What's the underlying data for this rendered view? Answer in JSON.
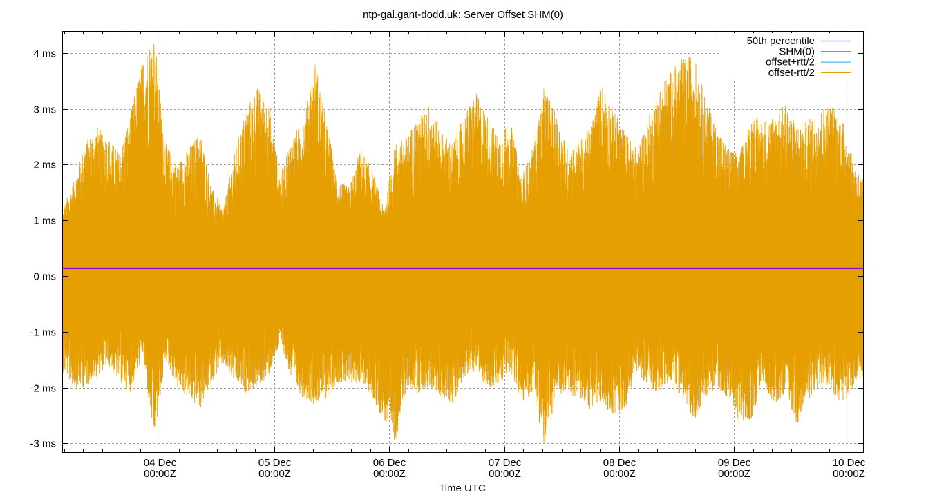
{
  "chart_data": {
    "type": "line",
    "title": "ntp-gal.gant-dodd.uk: Server Offset SHM(0)",
    "xlabel": "Time UTC",
    "ylabel": "",
    "ylim": [
      -3.15,
      4.4
    ],
    "y_unit": "ms",
    "grid": true,
    "legend_position": "top-right-inside",
    "y_ticks": [
      {
        "value": 4,
        "label": "4 ms"
      },
      {
        "value": 3,
        "label": "3 ms"
      },
      {
        "value": 2,
        "label": "2 ms"
      },
      {
        "value": 1,
        "label": "1 ms"
      },
      {
        "value": 0,
        "label": "0 ms"
      },
      {
        "value": -1,
        "label": "-1 ms"
      },
      {
        "value": -2,
        "label": "-2 ms"
      },
      {
        "value": -3,
        "label": "-3 ms"
      }
    ],
    "x_ticks": [
      {
        "day": 4,
        "line1": "04 Dec",
        "line2": "00:00Z"
      },
      {
        "day": 5,
        "line1": "05 Dec",
        "line2": "00:00Z"
      },
      {
        "day": 6,
        "line1": "06 Dec",
        "line2": "00:00Z"
      },
      {
        "day": 7,
        "line1": "07 Dec",
        "line2": "00:00Z"
      },
      {
        "day": 8,
        "line1": "08 Dec",
        "line2": "00:00Z"
      },
      {
        "day": 9,
        "line1": "09 Dec",
        "line2": "00:00Z"
      },
      {
        "day": 10,
        "line1": "10 Dec",
        "line2": "00:00Z"
      }
    ],
    "x_range_days": [
      3.15,
      10.13
    ],
    "minor_tick_hours": 4,
    "legend": [
      {
        "name": "50th percentile",
        "color": "#9400d3"
      },
      {
        "name": "SHM(0)",
        "color": "#009e73"
      },
      {
        "name": "offset+rtt/2",
        "color": "#56b4e9"
      },
      {
        "name": "offset-rtt/2",
        "color": "#e69f00"
      }
    ],
    "series": [
      {
        "name": "50th percentile",
        "type": "hline",
        "value": 0.15,
        "color": "#9400d3"
      },
      {
        "name": "offset-rtt/2 envelope",
        "color": "#e69f00",
        "x_days": [
          3.15,
          3.25,
          3.35,
          3.45,
          3.55,
          3.65,
          3.75,
          3.85,
          3.95,
          4.05,
          4.15,
          4.25,
          4.35,
          4.45,
          4.55,
          4.65,
          4.75,
          4.85,
          4.95,
          5.05,
          5.15,
          5.25,
          5.35,
          5.45,
          5.55,
          5.65,
          5.75,
          5.85,
          5.95,
          6.05,
          6.15,
          6.25,
          6.35,
          6.45,
          6.55,
          6.65,
          6.75,
          6.85,
          6.95,
          7.05,
          7.15,
          7.25,
          7.35,
          7.45,
          7.55,
          7.65,
          7.75,
          7.85,
          7.95,
          8.05,
          8.15,
          8.25,
          8.35,
          8.45,
          8.55,
          8.65,
          8.75,
          8.85,
          8.95,
          9.05,
          9.15,
          9.25,
          9.35,
          9.45,
          9.55,
          9.65,
          9.75,
          9.85,
          9.95,
          10.05,
          10.13
        ],
        "max": [
          1.2,
          1.7,
          2.4,
          2.7,
          2.5,
          2.2,
          3.0,
          3.9,
          4.4,
          2.4,
          2.0,
          2.3,
          2.6,
          1.6,
          1.2,
          2.2,
          3.0,
          3.4,
          3.1,
          1.8,
          2.5,
          2.8,
          3.9,
          2.8,
          1.7,
          1.6,
          2.3,
          1.9,
          1.2,
          2.4,
          2.5,
          2.9,
          3.1,
          2.6,
          2.4,
          2.9,
          3.3,
          2.9,
          2.5,
          2.8,
          1.8,
          2.3,
          3.4,
          2.9,
          2.3,
          2.4,
          2.7,
          3.5,
          3.0,
          2.6,
          2.3,
          2.8,
          3.4,
          3.7,
          3.9,
          4.0,
          3.2,
          2.7,
          2.3,
          2.2,
          2.9,
          2.8,
          2.9,
          3.1,
          2.7,
          2.8,
          3.0,
          3.1,
          2.8,
          2.0,
          1.7
        ],
        "min": [
          -1.7,
          -2.0,
          -2.0,
          -1.8,
          -1.6,
          -1.9,
          -2.1,
          -1.4,
          -3.0,
          -1.5,
          -2.0,
          -2.2,
          -2.4,
          -1.9,
          -1.6,
          -1.9,
          -2.1,
          -2.0,
          -1.8,
          -1.2,
          -1.9,
          -2.2,
          -2.3,
          -2.2,
          -1.9,
          -2.0,
          -1.9,
          -2.2,
          -2.6,
          -3.0,
          -2.0,
          -2.1,
          -2.0,
          -2.2,
          -2.3,
          -1.8,
          -1.7,
          -2.0,
          -2.0,
          -1.7,
          -2.3,
          -2.1,
          -3.1,
          -2.2,
          -2.1,
          -2.2,
          -2.4,
          -2.3,
          -2.5,
          -2.4,
          -1.7,
          -2.0,
          -2.1,
          -1.9,
          -2.2,
          -2.6,
          -2.2,
          -2.0,
          -2.2,
          -2.7,
          -2.6,
          -1.9,
          -2.3,
          -2.1,
          -2.7,
          -2.2,
          -2.0,
          -2.1,
          -2.3,
          -2.0,
          -1.8
        ]
      }
    ]
  }
}
